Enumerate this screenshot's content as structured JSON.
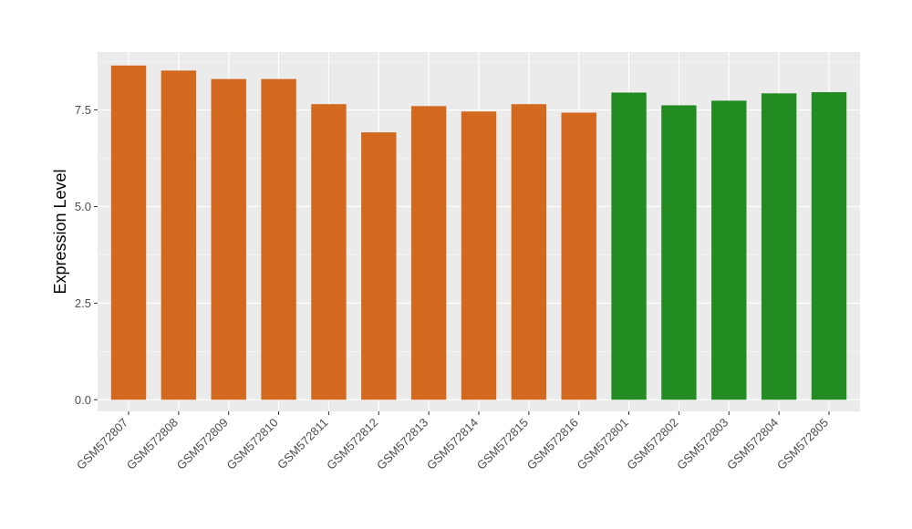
{
  "chart_data": {
    "type": "bar",
    "title": "",
    "xlabel": "",
    "ylabel": "Expression Level",
    "ylim": [
      -0.3,
      9.0
    ],
    "yticks": [
      0.0,
      2.5,
      5.0,
      7.5
    ],
    "ytick_labels": [
      "0.0",
      "2.5",
      "5.0",
      "7.5"
    ],
    "grid": true,
    "legend": "none",
    "panel_background": "#ebebeb",
    "gridline_color": "#ffffff",
    "categories": [
      "GSM572807",
      "GSM572808",
      "GSM572809",
      "GSM572810",
      "GSM572811",
      "GSM572812",
      "GSM572813",
      "GSM572814",
      "GSM572815",
      "GSM572816",
      "GSM572801",
      "GSM572802",
      "GSM572803",
      "GSM572804",
      "GSM572805"
    ],
    "values": [
      8.65,
      8.52,
      8.3,
      8.3,
      7.65,
      6.92,
      7.6,
      7.46,
      7.65,
      7.43,
      7.95,
      7.62,
      7.74,
      7.93,
      7.96
    ],
    "bar_colors": [
      "#d2691e",
      "#d2691e",
      "#d2691e",
      "#d2691e",
      "#d2691e",
      "#d2691e",
      "#d2691e",
      "#d2691e",
      "#d2691e",
      "#d2691e",
      "#228b22",
      "#228b22",
      "#228b22",
      "#228b22",
      "#228b22"
    ]
  }
}
